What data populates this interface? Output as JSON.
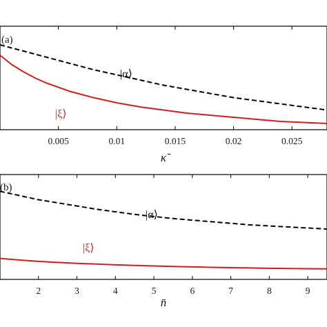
{
  "chart_data": [
    {
      "type": "line",
      "panel_label": "(a)",
      "xlabel": "κ̃",
      "ylabel": "",
      "xlim": [
        0.0,
        0.028
      ],
      "ylim": [
        0.0,
        1.0
      ],
      "xticks": [
        0.005,
        0.01,
        0.015,
        0.02,
        0.025
      ],
      "xtick_labels": [
        "0.005",
        "0.01",
        "0.015",
        "0.02",
        "0.025"
      ],
      "grid": false,
      "series": [
        {
          "name": "|α⟩",
          "color": "#000000",
          "style": "dashed",
          "x": [
            0.0,
            0.002,
            0.004,
            0.006,
            0.008,
            0.01,
            0.012,
            0.014,
            0.016,
            0.018,
            0.02,
            0.022,
            0.024,
            0.026,
            0.028
          ],
          "y": [
            0.82,
            0.76,
            0.7,
            0.64,
            0.58,
            0.53,
            0.48,
            0.43,
            0.39,
            0.35,
            0.31,
            0.28,
            0.25,
            0.22,
            0.19
          ]
        },
        {
          "name": "|ξ⟩",
          "color": "#cc1f1f",
          "style": "solid",
          "x": [
            0.0,
            0.001,
            0.002,
            0.003,
            0.004,
            0.006,
            0.008,
            0.01,
            0.012,
            0.014,
            0.016,
            0.018,
            0.02,
            0.022,
            0.024,
            0.026,
            0.028
          ],
          "y": [
            0.72,
            0.63,
            0.56,
            0.5,
            0.45,
            0.37,
            0.31,
            0.26,
            0.22,
            0.19,
            0.16,
            0.14,
            0.12,
            0.1,
            0.08,
            0.07,
            0.06
          ]
        }
      ]
    },
    {
      "type": "line",
      "panel_label": "(b)",
      "xlabel": "n̄",
      "ylabel": "",
      "xlim": [
        1.0,
        9.5
      ],
      "ylim": [
        0.0,
        1.0
      ],
      "xticks": [
        2,
        3,
        4,
        5,
        6,
        7,
        8,
        9
      ],
      "xtick_labels": [
        "2",
        "3",
        "4",
        "5",
        "6",
        "7",
        "8",
        "9"
      ],
      "grid": false,
      "series": [
        {
          "name": "|α⟩",
          "color": "#000000",
          "style": "dashed",
          "x": [
            1.0,
            1.5,
            2.0,
            2.5,
            3.0,
            3.5,
            4.0,
            4.5,
            5.0,
            5.5,
            6.0,
            6.5,
            7.0,
            7.5,
            8.0,
            8.5,
            9.0,
            9.5
          ],
          "y": [
            0.84,
            0.8,
            0.76,
            0.73,
            0.7,
            0.67,
            0.645,
            0.62,
            0.6,
            0.58,
            0.565,
            0.55,
            0.535,
            0.52,
            0.51,
            0.5,
            0.49,
            0.48
          ]
        },
        {
          "name": "|ξ⟩",
          "color": "#cc1f1f",
          "style": "solid",
          "x": [
            1.0,
            1.5,
            2.0,
            2.5,
            3.0,
            3.5,
            4.0,
            4.5,
            5.0,
            5.5,
            6.0,
            6.5,
            7.0,
            7.5,
            8.0,
            8.5,
            9.0,
            9.5
          ],
          "y": [
            0.2,
            0.185,
            0.172,
            0.162,
            0.153,
            0.146,
            0.139,
            0.133,
            0.128,
            0.123,
            0.119,
            0.115,
            0.112,
            0.109,
            0.106,
            0.104,
            0.102,
            0.1
          ]
        }
      ]
    }
  ]
}
